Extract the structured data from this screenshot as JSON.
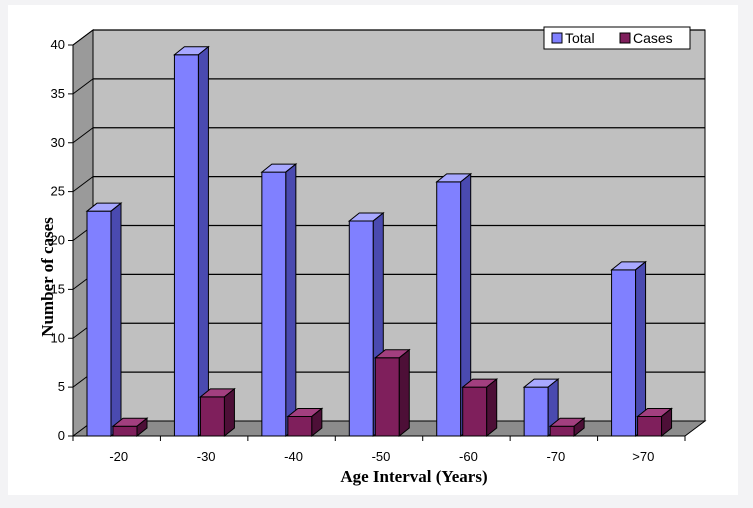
{
  "chart_data": {
    "type": "bar",
    "title": "",
    "xlabel": "Age Interval (Years)",
    "ylabel": "Number of cases",
    "ylim": [
      0,
      40
    ],
    "yticks": [
      0,
      5,
      10,
      15,
      20,
      25,
      30,
      35,
      40
    ],
    "categories": [
      "-20",
      "-30",
      "-40",
      "-50",
      "-60",
      "-70",
      ">70"
    ],
    "series": [
      {
        "name": "Total",
        "values": [
          23,
          39,
          27,
          22,
          26,
          5,
          17
        ],
        "color": "#8080ff",
        "side": "#4a4ab0",
        "top": "#a8a8ff"
      },
      {
        "name": "Cases",
        "values": [
          1,
          4,
          2,
          8,
          5,
          1,
          2
        ],
        "color": "#7f1f5c",
        "side": "#4d0f37",
        "top": "#a23f7f"
      }
    ],
    "grid": true,
    "legend_position": "top-right",
    "style": "3d-clustered-column",
    "plot_background": "#c0c0c0"
  }
}
